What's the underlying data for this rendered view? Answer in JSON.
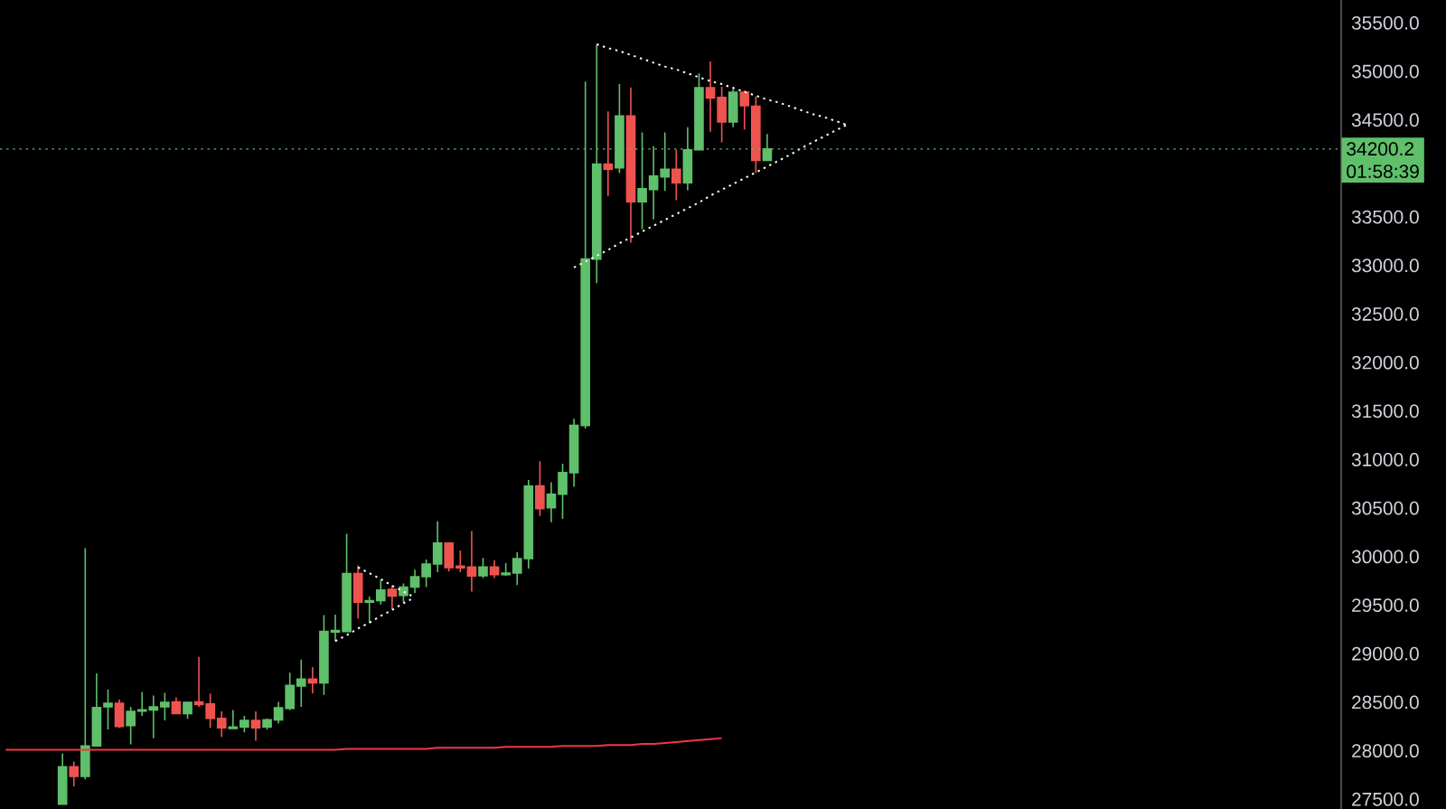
{
  "chart_data": {
    "type": "candlestick",
    "categories": [
      null,
      null,
      null,
      null,
      null,
      null,
      null,
      null,
      null,
      null,
      null,
      null,
      null,
      null,
      null,
      null,
      null,
      null,
      null,
      null,
      null,
      null,
      null,
      null,
      null,
      null,
      null,
      null,
      null,
      null,
      null,
      null,
      null,
      null,
      null,
      null,
      null,
      null,
      null,
      null,
      null,
      null,
      null,
      null,
      null,
      null,
      null,
      null,
      null,
      null,
      null,
      null,
      null,
      null,
      null,
      null,
      null,
      null,
      null,
      null,
      null,
      null,
      null,
      null,
      null,
      null,
      null,
      null,
      null,
      null,
      null,
      null,
      null,
      null,
      null,
      null,
      null,
      null,
      null,
      null,
      null,
      null,
      null,
      null,
      null,
      null,
      null,
      null,
      null,
      null,
      null,
      null,
      null,
      null,
      null,
      null,
      null,
      null,
      null,
      null,
      null,
      null,
      null,
      null,
      null,
      null,
      null,
      null,
      null,
      null,
      null,
      null,
      null,
      null,
      null,
      null,
      null,
      null
    ],
    "ohlc": [
      null,
      null,
      null,
      null,
      null,
      [
        27450,
        27973,
        27450,
        27834
      ],
      [
        27834,
        27890,
        27634,
        27735
      ],
      [
        27735,
        30088,
        27705,
        28050
      ],
      [
        28050,
        28797,
        28045,
        28446
      ],
      [
        28452,
        28631,
        28220,
        28489
      ],
      [
        28489,
        28529,
        28236,
        28251
      ],
      [
        28260,
        28452,
        28066,
        28405
      ],
      [
        28409,
        28606,
        28359,
        28421
      ],
      [
        28421,
        28569,
        28128,
        28452
      ],
      [
        28452,
        28597,
        28313,
        28498
      ],
      [
        28504,
        28550,
        28375,
        28384
      ],
      [
        28384,
        28505,
        28328,
        28498
      ],
      [
        28504,
        28967,
        28452,
        28476
      ],
      [
        28483,
        28591,
        28236,
        28334
      ],
      [
        28334,
        28405,
        28143,
        28236
      ],
      [
        28229,
        28421,
        28225,
        28245
      ],
      [
        28245,
        28359,
        28189,
        28313
      ],
      [
        28313,
        28405,
        28103,
        28236
      ],
      [
        28245,
        28334,
        28220,
        28319
      ],
      [
        28319,
        28504,
        28282,
        28442
      ],
      [
        28436,
        28804,
        28421,
        28674
      ],
      [
        28668,
        28940,
        28452,
        28739
      ],
      [
        28739,
        28862,
        28591,
        28699
      ],
      [
        28699,
        29399,
        28575,
        29230
      ],
      [
        29223,
        29402,
        29131,
        29239
      ],
      [
        29229,
        30236,
        29225,
        29825
      ],
      [
        29825,
        29909,
        29362,
        29532
      ],
      [
        29532,
        29588,
        29316,
        29547
      ],
      [
        29547,
        29764,
        29507,
        29655
      ],
      [
        29662,
        29702,
        29455,
        29594
      ],
      [
        29600,
        29723,
        29532,
        29686
      ],
      [
        29686,
        29865,
        29625,
        29794
      ],
      [
        29794,
        29970,
        29686,
        29924
      ],
      [
        29924,
        30365,
        29841,
        30140
      ],
      [
        30140,
        30149,
        29847,
        29887
      ],
      [
        29902,
        30063,
        29841,
        29884
      ],
      [
        29893,
        30264,
        29640,
        29801
      ],
      [
        29804,
        29986,
        29779,
        29893
      ],
      [
        29893,
        29964,
        29779,
        29816
      ],
      [
        29816,
        29933,
        29801,
        29831
      ],
      [
        29831,
        30047,
        29708,
        29980
      ],
      [
        29980,
        30791,
        29878,
        30727
      ],
      [
        30730,
        30983,
        30421,
        30495
      ],
      [
        30504,
        30767,
        30356,
        30643
      ],
      [
        30643,
        30958,
        30390,
        30866
      ],
      [
        30866,
        31421,
        30720,
        31353
      ],
      [
        31353,
        34896,
        31322,
        33066
      ],
      [
        33066,
        35273,
        32819,
        34044
      ],
      [
        34044,
        34587,
        33714,
        33992
      ],
      [
        34007,
        34871,
        33952,
        34541
      ],
      [
        34541,
        34834,
        33235,
        33658
      ],
      [
        33658,
        34371,
        33374,
        33791
      ],
      [
        33782,
        34229,
        33476,
        33921
      ],
      [
        33914,
        34371,
        33769,
        33992
      ],
      [
        33992,
        34192,
        33674,
        33853
      ],
      [
        33853,
        34424,
        33776,
        34192
      ],
      [
        34192,
        34980,
        34188,
        34831
      ],
      [
        34831,
        35103,
        34378,
        34726
      ],
      [
        34733,
        34841,
        34270,
        34479
      ],
      [
        34479,
        34816,
        34424,
        34785
      ],
      [
        34785,
        34804,
        34402,
        34646
      ],
      [
        34640,
        34742,
        33952,
        34084
      ],
      [
        34084,
        34356,
        34080,
        34200.2
      ],
      null,
      null,
      null,
      null,
      null,
      null,
      null,
      null,
      null,
      null,
      null,
      null,
      null,
      null,
      null,
      null,
      null,
      null,
      null,
      null,
      null,
      null,
      null,
      null,
      null,
      null,
      null,
      null,
      null,
      null,
      null,
      null,
      null,
      null,
      null,
      null,
      null,
      null,
      null,
      null,
      null,
      null,
      null,
      null,
      null,
      null,
      null,
      null,
      null,
      null
    ],
    "colors": [
      null,
      null,
      null,
      null,
      null,
      "#5fbf6a",
      "#ef5350",
      "#5fbf6a",
      "#5fbf6a",
      "#5fbf6a",
      "#ef5350",
      "#5fbf6a",
      "#5fbf6a",
      "#5fbf6a",
      "#5fbf6a",
      "#ef5350",
      "#5fbf6a",
      "#ef5350",
      "#ef5350",
      "#ef5350",
      "#5fbf6a",
      "#5fbf6a",
      "#ef5350",
      "#5fbf6a",
      "#5fbf6a",
      "#5fbf6a",
      "#5fbf6a",
      "#ef5350",
      "#5fbf6a",
      "#5fbf6a",
      "#5fbf6a",
      "#ef5350",
      "#5fbf6a",
      "#5fbf6a",
      "#ef5350",
      "#5fbf6a",
      "#5fbf6a",
      "#5fbf6a",
      "#5fbf6a",
      "#ef5350",
      "#ef5350",
      "#ef5350",
      "#5fbf6a",
      "#ef5350",
      "#5fbf6a",
      "#5fbf6a",
      "#5fbf6a",
      "#ef5350",
      "#5fbf6a",
      "#5fbf6a",
      "#5fbf6a",
      "#5fbf6a",
      "#5fbf6a",
      "#ef5350",
      "#5fbf6a",
      "#ef5350",
      "#5fbf6a",
      "#5fbf6a",
      "#5fbf6a",
      "#ef5350",
      "#5fbf6a",
      "#5fbf6a",
      "#ef5350",
      "#ef5350",
      "#5fbf6a",
      "#ef5350",
      "#ef5350",
      "#5fbf6a",
      null,
      null,
      null,
      null,
      null,
      null,
      null,
      null,
      null,
      null,
      null,
      null,
      null,
      null,
      null,
      null,
      null,
      null,
      null,
      null,
      null,
      null,
      null,
      null,
      null,
      null,
      null,
      null,
      null,
      null,
      null,
      null,
      null,
      null,
      null,
      null,
      null,
      null,
      null,
      null,
      null,
      null,
      null,
      null,
      null,
      null,
      null,
      null,
      null,
      null
    ],
    "series": [
      {
        "type": "line",
        "color": "#f23645",
        "line_style": "solid",
        "values": [
          28010,
          28010,
          28010,
          28010,
          28010,
          28010,
          28010,
          28010,
          28010,
          28010,
          28010,
          28010,
          28010,
          28010,
          28010,
          28010,
          28010,
          28010,
          28010,
          28010,
          28010,
          28010,
          28010,
          28010,
          28010,
          28010,
          28010,
          28010,
          28010,
          28010,
          28020,
          28020,
          28020,
          28020,
          28020,
          28020,
          28020,
          28020,
          28030,
          28030,
          28030,
          28030,
          28030,
          28030,
          28040,
          28040,
          28040,
          28040,
          28040,
          28050,
          28050,
          28050,
          28050,
          28060,
          28060,
          28060,
          28070,
          28070,
          28080,
          28090,
          28100,
          28110,
          28120,
          28130,
          null,
          null,
          null,
          null,
          null,
          null,
          null,
          null,
          null,
          null,
          null,
          null,
          null,
          null,
          null,
          null,
          null,
          null,
          null,
          null,
          null,
          null,
          null,
          null,
          null,
          null,
          null,
          null,
          null,
          null,
          null,
          null,
          null,
          null,
          null,
          null,
          null,
          null,
          null,
          null,
          null,
          null,
          null,
          null,
          null,
          null,
          null,
          null,
          null,
          null,
          null,
          null,
          null,
          null
        ]
      },
      {
        "type": "line",
        "color": "#ffffff",
        "line_style": "dotted",
        "values": [
          null,
          null,
          null,
          null,
          null,
          null,
          null,
          null,
          null,
          null,
          null,
          null,
          null,
          null,
          null,
          null,
          null,
          null,
          null,
          null,
          null,
          null,
          null,
          null,
          null,
          null,
          null,
          null,
          null,
          null,
          null,
          null,
          null,
          null,
          null,
          null,
          null,
          null,
          null,
          null,
          null,
          null,
          null,
          null,
          null,
          null,
          null,
          null,
          null,
          null,
          null,
          null,
          35280,
          35240,
          35210,
          35170,
          35130,
          35090,
          35050,
          35020,
          34980,
          34940,
          34900,
          34870,
          34830,
          34790,
          34750,
          34710,
          34680,
          34640,
          34600,
          34560,
          34530,
          34490,
          34450,
          null,
          null,
          null,
          null,
          null,
          null,
          null,
          null,
          null,
          null,
          null,
          null,
          null,
          null,
          null,
          null,
          null,
          null,
          null,
          null,
          null,
          null,
          null,
          null,
          null,
          null,
          null,
          null,
          null,
          null,
          null,
          null,
          null,
          null,
          null,
          null,
          null,
          null,
          null,
          null,
          null,
          null,
          null
        ]
      },
      {
        "type": "line",
        "color": "#ffffff",
        "line_style": "dotted",
        "values": [
          null,
          null,
          null,
          null,
          null,
          null,
          null,
          null,
          null,
          null,
          null,
          null,
          null,
          null,
          null,
          null,
          null,
          null,
          null,
          null,
          null,
          null,
          null,
          null,
          null,
          null,
          null,
          null,
          null,
          null,
          null,
          null,
          null,
          null,
          null,
          null,
          null,
          null,
          null,
          null,
          null,
          null,
          null,
          null,
          null,
          null,
          null,
          null,
          null,
          null,
          32980,
          33040,
          33100,
          33160,
          33230,
          33290,
          33350,
          33410,
          33470,
          33530,
          33590,
          33650,
          33720,
          33780,
          33840,
          33900,
          33960,
          34020,
          34080,
          34140,
          34210,
          34270,
          34330,
          34390,
          34450,
          null,
          null,
          null,
          null,
          null,
          null,
          null,
          null,
          null,
          null,
          null,
          null,
          null,
          null,
          null,
          null,
          null,
          null,
          null,
          null,
          null,
          null,
          null,
          null,
          null,
          null,
          null,
          null,
          null,
          null,
          null,
          null,
          null,
          null,
          null,
          null,
          null,
          null,
          null,
          null,
          null,
          null,
          null
        ]
      },
      {
        "type": "line",
        "color": "#ffffff",
        "line_style": "dotted",
        "values": [
          null,
          null,
          null,
          null,
          null,
          null,
          null,
          null,
          null,
          null,
          null,
          null,
          null,
          null,
          null,
          null,
          null,
          null,
          null,
          null,
          null,
          null,
          null,
          null,
          null,
          null,
          null,
          null,
          null,
          null,
          null,
          29890,
          29830,
          29770,
          29700,
          29640,
          29580,
          null,
          null,
          null,
          null,
          null,
          null,
          null,
          null,
          null,
          null,
          null,
          null,
          null,
          null,
          null,
          null,
          null,
          null,
          null,
          null,
          null,
          null,
          null,
          null,
          null,
          null,
          null,
          null,
          null,
          null,
          null,
          null,
          null,
          null,
          null,
          null,
          null,
          null,
          null,
          null,
          null,
          null,
          null,
          null,
          null,
          null,
          null,
          null,
          null,
          null,
          null,
          null,
          null,
          null,
          null,
          null,
          null,
          null,
          null,
          null,
          null,
          null,
          null,
          null,
          null,
          null,
          null,
          null,
          null,
          null,
          null,
          null,
          null,
          null,
          null,
          null,
          null,
          null,
          null,
          null,
          null
        ]
      },
      {
        "type": "line",
        "color": "#ffffff",
        "line_style": "dotted",
        "values": [
          null,
          null,
          null,
          null,
          null,
          null,
          null,
          null,
          null,
          null,
          null,
          null,
          null,
          null,
          null,
          null,
          null,
          null,
          null,
          null,
          null,
          null,
          null,
          null,
          null,
          null,
          null,
          null,
          null,
          29130,
          29190,
          29260,
          29320,
          29390,
          29450,
          29520,
          29580,
          null,
          null,
          null,
          null,
          null,
          null,
          null,
          null,
          null,
          null,
          null,
          null,
          null,
          null,
          null,
          null,
          null,
          null,
          null,
          null,
          null,
          null,
          null,
          null,
          null,
          null,
          null,
          null,
          null,
          null,
          null,
          null,
          null,
          null,
          null,
          null,
          null,
          null,
          null,
          null,
          null,
          null,
          null,
          null,
          null,
          null,
          null,
          null,
          null,
          null,
          null,
          null,
          null,
          null,
          null,
          null,
          null,
          null,
          null,
          null,
          null,
          null,
          null,
          null,
          null,
          null,
          null,
          null,
          null,
          null,
          null,
          null,
          null,
          null,
          null,
          null,
          null,
          null,
          null,
          null,
          null
        ]
      }
    ],
    "ylim": [
      27400,
      35736
    ],
    "yticks": [
      {
        "value": 27500,
        "label": "27500.0"
      },
      {
        "value": 28000,
        "label": "28000.0"
      },
      {
        "value": 28500,
        "label": "28500.0"
      },
      {
        "value": 29000,
        "label": "29000.0"
      },
      {
        "value": 29500,
        "label": "29500.0"
      },
      {
        "value": 30000,
        "label": "30000.0"
      },
      {
        "value": 30500,
        "label": "30500.0"
      },
      {
        "value": 31000,
        "label": "31000.0"
      },
      {
        "value": 31500,
        "label": "31500.0"
      },
      {
        "value": 32000,
        "label": "32000.0"
      },
      {
        "value": 32500,
        "label": "32500.0"
      },
      {
        "value": 33000,
        "label": "33000.0"
      },
      {
        "value": 33500,
        "label": "33500.0"
      },
      {
        "value": 34500,
        "label": "34500.0"
      },
      {
        "value": 35000,
        "label": "35000.0"
      },
      {
        "value": 35500,
        "label": "35500.0"
      }
    ],
    "ref_lines": [
      {
        "axis": "y",
        "value": 34200.2,
        "label": "34200.2",
        "color": "#5fbf6a",
        "line_style": "dotted"
      }
    ],
    "annotations": [
      "01:58:39"
    ],
    "tick_labels": "y"
  }
}
